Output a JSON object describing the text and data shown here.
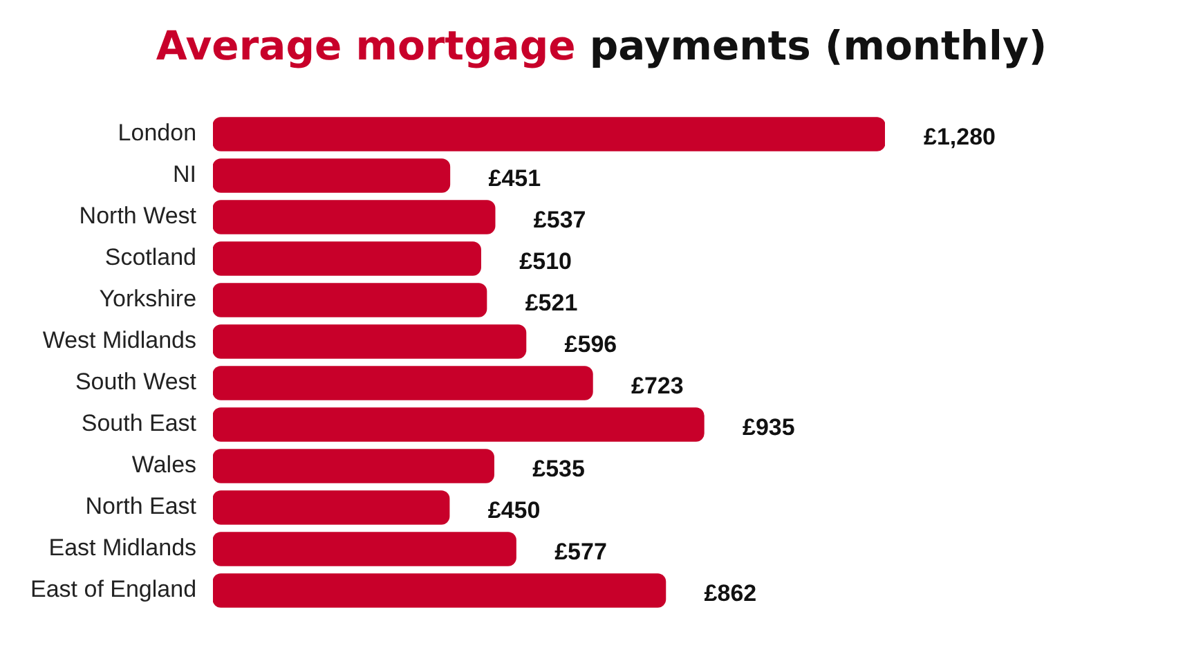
{
  "chart_data": {
    "type": "bar",
    "orientation": "horizontal",
    "title": "Average mortgage payments (monthly)",
    "categories": [
      "London",
      "NI",
      "North West",
      "Scotland",
      "Yorkshire",
      "West Midlands",
      "South West",
      "South East",
      "Wales",
      "North East",
      "East Midlands",
      "East of England"
    ],
    "values": [
      1280,
      451,
      537,
      510,
      521,
      596,
      723,
      935,
      535,
      450,
      577,
      862
    ],
    "value_labels": [
      "£1,280",
      "£451",
      "£537",
      "£510",
      "£521",
      "£596",
      "£723",
      "£935",
      "£535",
      "£450",
      "£577",
      "£862"
    ],
    "color": "#c8002a",
    "grid": false,
    "legend": false
  }
}
